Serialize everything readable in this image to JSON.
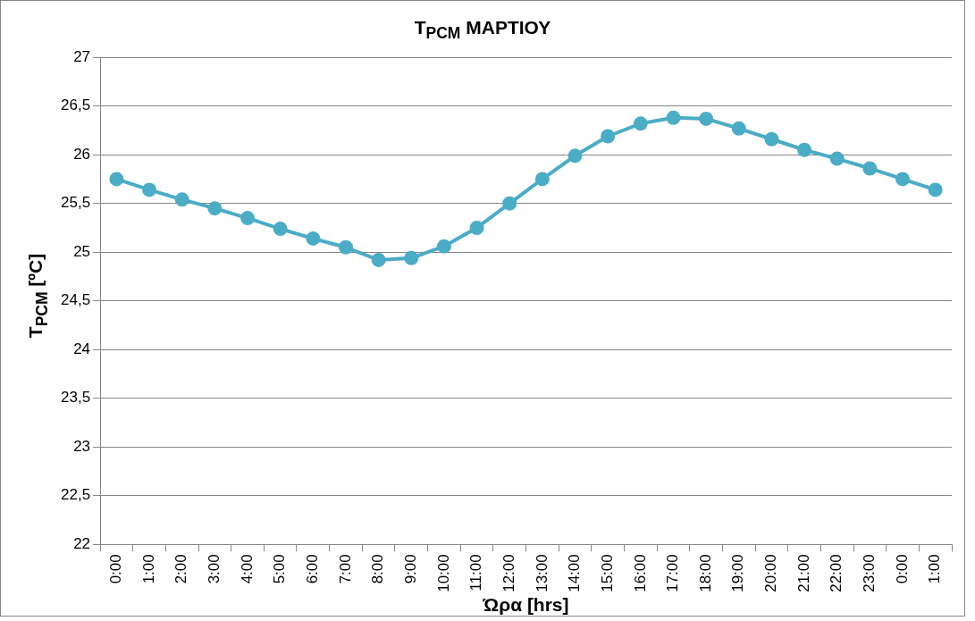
{
  "chart_data": {
    "type": "line",
    "title": "T$_{PCM}$ ΜΑΡΤΙΟΥ",
    "xlabel": "Ώρα [hrs]",
    "ylabel": "T$_{PCM}$  [ºC]",
    "categories": [
      "0:00",
      "1:00",
      "2:00",
      "3:00",
      "4:00",
      "5:00",
      "6:00",
      "7:00",
      "8:00",
      "9:00",
      "10:00",
      "11:00",
      "12:00",
      "13:00",
      "14:00",
      "15:00",
      "16:00",
      "17:00",
      "18:00",
      "19:00",
      "20:00",
      "21:00",
      "22:00",
      "23:00",
      "0:00",
      "1:00"
    ],
    "series": [
      {
        "color": "#4bacc6",
        "values": [
          25.75,
          25.64,
          25.54,
          25.45,
          25.35,
          25.24,
          25.14,
          25.05,
          24.92,
          24.94,
          25.06,
          25.25,
          25.5,
          25.75,
          25.99,
          26.19,
          26.32,
          26.38,
          26.37,
          26.27,
          26.16,
          26.05,
          25.96,
          25.86,
          25.75,
          25.64
        ]
      }
    ],
    "ylim": [
      22,
      27
    ],
    "yticks": [
      22,
      {
        "value": 22.5,
        "label": "22,5"
      },
      23,
      {
        "value": 23.5,
        "label": "23,5"
      },
      24,
      {
        "value": 24.5,
        "label": "24,5"
      },
      25,
      {
        "value": 25.5,
        "label": "25,5"
      },
      26,
      {
        "value": 26.5,
        "label": "26,5"
      },
      27
    ],
    "grid": "y",
    "legend": false,
    "marker": "circle",
    "line_style": "solid"
  }
}
